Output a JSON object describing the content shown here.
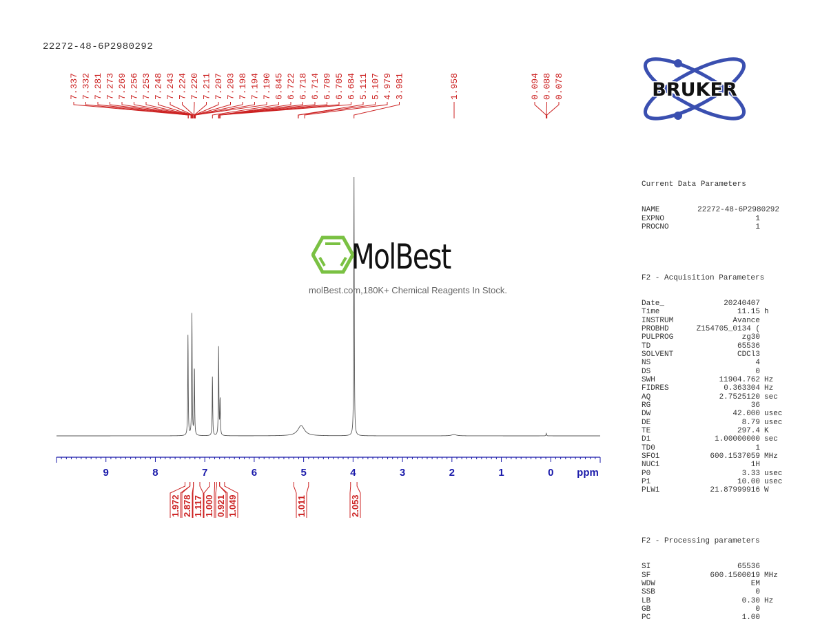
{
  "sample_title": "22272-48-6P2980292",
  "watermark": {
    "brand": "MolBest",
    "tagline": "molBest.com,180K+ Chemical Reagents In Stock.",
    "icon": "benzene-hexagon-icon",
    "color": "#7ac143"
  },
  "logo": {
    "text": "BRUKER",
    "color": "#3a4fb0"
  },
  "parameters": {
    "current": {
      "title": "Current Data Parameters",
      "rows": [
        {
          "k": "NAME",
          "v": "22272-48-6P2980292",
          "u": ""
        },
        {
          "k": "EXPNO",
          "v": "1",
          "u": ""
        },
        {
          "k": "PROCNO",
          "v": "1",
          "u": ""
        }
      ]
    },
    "acquisition": {
      "title": "F2 - Acquisition Parameters",
      "rows": [
        {
          "k": "Date_",
          "v": "20240407",
          "u": ""
        },
        {
          "k": "Time",
          "v": "11.15",
          "u": "h"
        },
        {
          "k": "INSTRUM",
          "v": "Avance",
          "u": ""
        },
        {
          "k": "PROBHD",
          "v": "Z154705_0134 (",
          "u": ""
        },
        {
          "k": "PULPROG",
          "v": "zg30",
          "u": ""
        },
        {
          "k": "TD",
          "v": "65536",
          "u": ""
        },
        {
          "k": "SOLVENT",
          "v": "CDCl3",
          "u": ""
        },
        {
          "k": "NS",
          "v": "4",
          "u": ""
        },
        {
          "k": "DS",
          "v": "0",
          "u": ""
        },
        {
          "k": "SWH",
          "v": "11904.762",
          "u": "Hz"
        },
        {
          "k": "FIDRES",
          "v": "0.363304",
          "u": "Hz"
        },
        {
          "k": "AQ",
          "v": "2.7525120",
          "u": "sec"
        },
        {
          "k": "RG",
          "v": "36",
          "u": ""
        },
        {
          "k": "DW",
          "v": "42.000",
          "u": "usec"
        },
        {
          "k": "DE",
          "v": "8.79",
          "u": "usec"
        },
        {
          "k": "TE",
          "v": "297.4",
          "u": "K"
        },
        {
          "k": "D1",
          "v": "1.00000000",
          "u": "sec"
        },
        {
          "k": "TD0",
          "v": "1",
          "u": ""
        },
        {
          "k": "SFO1",
          "v": "600.1537059",
          "u": "MHz"
        },
        {
          "k": "NUC1",
          "v": "1H",
          "u": ""
        },
        {
          "k": "P0",
          "v": "3.33",
          "u": "usec"
        },
        {
          "k": "P1",
          "v": "10.00",
          "u": "usec"
        },
        {
          "k": "PLW1",
          "v": "21.87999916",
          "u": "W"
        }
      ]
    },
    "processing": {
      "title": "F2 - Processing parameters",
      "rows": [
        {
          "k": "SI",
          "v": "65536",
          "u": ""
        },
        {
          "k": "SF",
          "v": "600.1500019",
          "u": "MHz"
        },
        {
          "k": "WDW",
          "v": "EM",
          "u": ""
        },
        {
          "k": "SSB",
          "v": "0",
          "u": ""
        },
        {
          "k": "LB",
          "v": "0.30",
          "u": "Hz"
        },
        {
          "k": "GB",
          "v": "0",
          "u": ""
        },
        {
          "k": "PC",
          "v": "1.00",
          "u": ""
        }
      ]
    }
  },
  "chart_data": {
    "type": "line",
    "title": "22272-48-6P2980292",
    "xlabel": "ppm",
    "ylabel": "",
    "xlim": [
      10.0,
      -1.0
    ],
    "x_reversed": true,
    "grid": false,
    "x_ticks": [
      9,
      8,
      7,
      6,
      5,
      4,
      3,
      2,
      1,
      0
    ],
    "peak_labels": [
      "7.337",
      "7.332",
      "7.281",
      "7.273",
      "7.269",
      "7.256",
      "7.253",
      "7.248",
      "7.243",
      "7.224",
      "7.220",
      "7.211",
      "7.207",
      "7.203",
      "7.198",
      "7.194",
      "7.190",
      "6.845",
      "6.722",
      "6.718",
      "6.714",
      "6.709",
      "6.705",
      "6.684",
      "5.111",
      "5.107",
      "4.979",
      "3.981",
      "1.958",
      "0.094",
      "0.088",
      "0.078"
    ],
    "peaks": [
      {
        "ppm": 7.34,
        "rel_height": 0.39
      },
      {
        "ppm": 7.26,
        "rel_height": 0.47
      },
      {
        "ppm": 7.21,
        "rel_height": 0.27
      },
      {
        "ppm": 6.845,
        "rel_height": 0.23
      },
      {
        "ppm": 6.72,
        "rel_height": 0.34
      },
      {
        "ppm": 6.69,
        "rel_height": 0.14
      },
      {
        "ppm": 5.05,
        "rel_height": 0.04
      },
      {
        "ppm": 3.981,
        "rel_height": 1.0
      },
      {
        "ppm": 1.958,
        "rel_height": 0.005
      },
      {
        "ppm": 0.09,
        "rel_height": 0.01
      }
    ],
    "integrals": [
      {
        "ppm_range": [
          7.4,
          7.3
        ],
        "value": "1.972"
      },
      {
        "ppm_range": [
          7.3,
          7.23
        ],
        "value": "2.878"
      },
      {
        "ppm_range": [
          7.23,
          7.1
        ],
        "value": "1.117"
      },
      {
        "ppm_range": [
          6.9,
          6.8
        ],
        "value": "1.000"
      },
      {
        "ppm_range": [
          6.76,
          6.7
        ],
        "value": "0.921"
      },
      {
        "ppm_range": [
          6.7,
          6.6
        ],
        "value": "1.049"
      },
      {
        "ppm_range": [
          5.2,
          4.9
        ],
        "value": "1.011"
      },
      {
        "ppm_range": [
          4.05,
          3.92
        ],
        "value": "2.053"
      }
    ],
    "colors": {
      "spectrum": "#555555",
      "axis": "#1a1aaa",
      "labels": "#cc2222"
    }
  }
}
